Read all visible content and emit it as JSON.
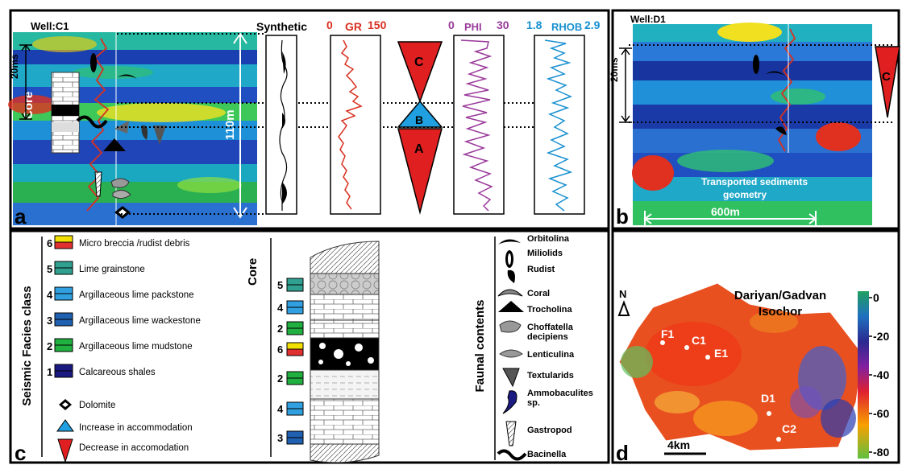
{
  "panel_a": {
    "panel_letter": "a",
    "well_label": "Well:C1",
    "time_scale": "20ms",
    "core_label": "Core",
    "thickness": "110m",
    "tracks": {
      "synthetic": "Synthetic",
      "gr": {
        "min": "0",
        "name": "GR",
        "max": "150"
      },
      "phi": {
        "min": "0",
        "name": "PHI",
        "max": "30"
      },
      "rhob": {
        "min": "1.8",
        "name": "RHOB",
        "max": "2.9"
      }
    },
    "sequence_labels": {
      "c": "C",
      "b": "B",
      "a": "A"
    }
  },
  "panel_b": {
    "panel_letter": "b",
    "well_label": "Well:D1",
    "time_scale": "20ms",
    "annotation_line1": "Transported sediments",
    "annotation_line2": "geometry",
    "scale": "600m",
    "sequence_label": "C"
  },
  "panel_c": {
    "panel_letter": "c",
    "facies_title": "Seismic Facies class",
    "facies": [
      {
        "num": "6",
        "label": "Micro breccia /rudist debris",
        "colors": [
          "#f2e000",
          "#e03030"
        ]
      },
      {
        "num": "5",
        "label": "Lime grainstone",
        "colors": [
          "#30a090",
          "#30a090"
        ]
      },
      {
        "num": "4",
        "label": "Argillaceous lime packstone",
        "colors": [
          "#30a0e0",
          "#30a0e0"
        ]
      },
      {
        "num": "3",
        "label": "Argillaceous lime wackestone",
        "colors": [
          "#1f60b0",
          "#1f60b0"
        ]
      },
      {
        "num": "2",
        "label": "Argillaceous lime mudstone",
        "colors": [
          "#20b040",
          "#20b040"
        ]
      },
      {
        "num": "1",
        "label": "Calcareous shales",
        "colors": [
          "#1a1a80",
          "#1a1a80"
        ]
      }
    ],
    "symbols": [
      {
        "label": "Dolomite"
      },
      {
        "label": "Increase in accommodation"
      },
      {
        "label": "Decrease in accomodation"
      }
    ],
    "core_title": "Core",
    "core_column": [
      "5",
      "4",
      "2",
      "6",
      "2",
      "4",
      "3"
    ],
    "faunal_title": "Faunal contents",
    "fauna": [
      "Orbitolina",
      "Miliolids",
      "Rudist",
      "Coral",
      "Trocholina",
      "Choffatella",
      "decipiens",
      "Lenticulina",
      "Textularids",
      "Ammobaculites",
      "sp.",
      "Gastropod",
      "Bacinella"
    ]
  },
  "panel_d": {
    "panel_letter": "d",
    "title_line1": "Dariyan/Gadvan",
    "title_line2": "Isochor",
    "north": "N",
    "wells": [
      "F1",
      "C1",
      "E1",
      "D1",
      "C2"
    ],
    "scale": "4km",
    "colorbar_ticks": [
      "0",
      "-20",
      "-40",
      "-60",
      "-80"
    ]
  },
  "colors": {
    "red": "#e02020",
    "blue": "#20a0e0",
    "purple": "#9a3a9a",
    "gr_red": "#d83020",
    "rhob_blue": "#1890d0"
  }
}
